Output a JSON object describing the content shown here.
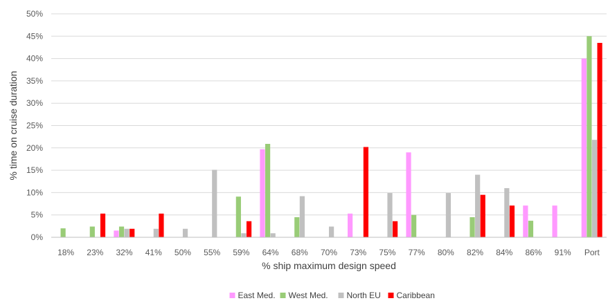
{
  "chart_data": {
    "type": "bar",
    "title": "",
    "xlabel": "% ship maximum design speed",
    "ylabel": "% time on cruise duration",
    "ylim": [
      0,
      50
    ],
    "ytick_step": 5,
    "y_unit": "%",
    "grid": true,
    "legend_position": "bottom",
    "categories": [
      "18%",
      "23%",
      "32%",
      "41%",
      "50%",
      "55%",
      "59%",
      "64%",
      "68%",
      "70%",
      "73%",
      "75%",
      "77%",
      "80%",
      "82%",
      "84%",
      "86%",
      "91%",
      "Port"
    ],
    "series": [
      {
        "name": "East Med.",
        "color": "#ff99ff",
        "values": [
          0,
          0,
          1.5,
          0,
          0,
          0,
          0,
          19.7,
          0,
          0,
          5.3,
          0,
          19.0,
          0,
          0,
          0,
          7.1,
          7.1,
          40.0
        ]
      },
      {
        "name": "West Med.",
        "color": "#99cc77",
        "values": [
          2.0,
          2.4,
          2.4,
          0,
          0,
          0,
          9.1,
          20.9,
          4.5,
          0,
          0,
          0,
          5.0,
          0,
          4.5,
          0,
          3.7,
          0,
          45.0
        ]
      },
      {
        "name": "North EU",
        "color": "#c0c0c0",
        "values": [
          0,
          0,
          1.9,
          1.9,
          1.9,
          15.1,
          0.9,
          0.9,
          9.2,
          2.4,
          0,
          9.9,
          0,
          9.9,
          14.0,
          11.0,
          0,
          0,
          21.8
        ]
      },
      {
        "name": "Caribbean",
        "color": "#ff0000",
        "values": [
          0,
          5.3,
          1.9,
          5.3,
          0,
          0,
          3.6,
          0,
          0,
          0,
          20.2,
          3.6,
          0,
          0,
          9.5,
          7.1,
          0,
          0,
          43.5
        ]
      }
    ]
  }
}
